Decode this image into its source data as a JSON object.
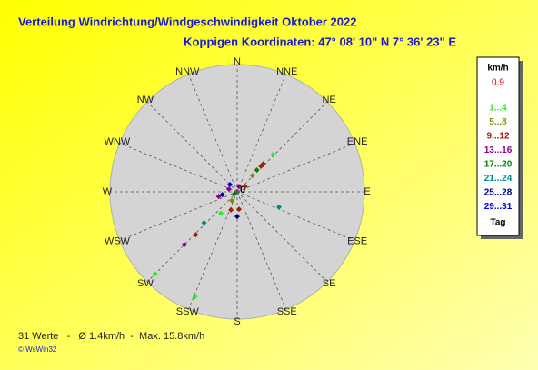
{
  "chart_data": {
    "type": "polar-scatter",
    "title": "Verteilung Windrichtung/Windgeschwindigkeit  Oktober 2022",
    "subtitle": "Koppigen  Koordinaten: 47° 08' 10\" N  7° 36' 23\" E",
    "directions": [
      "N",
      "NNE",
      "NE",
      "ENE",
      "E",
      "ESE",
      "SE",
      "SSE",
      "S",
      "SSW",
      "SW",
      "WSW",
      "W",
      "WNW",
      "NW",
      "NNW"
    ],
    "center_label": "0",
    "rlim": [
      0,
      16
    ],
    "legend_title": "km/h",
    "calm_value": 0.9,
    "calm_color": "#dd0000",
    "legend_footer": "Tag",
    "series": [
      {
        "name": "1...4",
        "color": "#22ee22",
        "angles": [
          44,
          225,
          202,
          217
        ],
        "values": [
          6.5,
          14.6,
          14.2,
          3.4
        ]
      },
      {
        "name": "5...8",
        "color": "#888800",
        "angles": [
          43,
          211
        ],
        "values": [
          2.8,
          1.3
        ]
      },
      {
        "name": "9...12",
        "color": "#992200",
        "angles": [
          43,
          224,
          56,
          43,
          199,
          174
        ],
        "values": [
          4.8,
          7.5,
          1.2,
          4.4,
          2.4,
          2.2
        ]
      },
      {
        "name": "13...16",
        "color": "#880088",
        "angles": [
          225,
          256,
          288,
          18
        ],
        "values": [
          9.4,
          2.4,
          1.1,
          0.7
        ]
      },
      {
        "name": "17...20",
        "color": "#008800",
        "angles": [
          42,
          236
        ],
        "values": [
          3.7,
          0.4
        ]
      },
      {
        "name": "21...24",
        "color": "#008888",
        "angles": [
          110,
          227
        ],
        "values": [
          5.6,
          5.7
        ]
      },
      {
        "name": "25...28",
        "color": "#000088",
        "angles": [
          259,
          180
        ],
        "values": [
          1.9,
          3.1
        ]
      },
      {
        "name": "29...31",
        "color": "#0000ff",
        "angles": [
          315
        ],
        "values": [
          1.3
        ]
      }
    ],
    "footer": "31 Werte   -   Ø 1.4km/h  -  Max. 15.8km/h",
    "credit": "© WsWin32"
  }
}
